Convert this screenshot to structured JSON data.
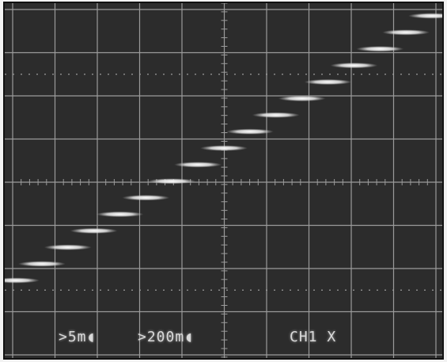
{
  "screen": {
    "background": "#2c2c2c",
    "grid_color": "#9a9a9a",
    "trace_color": "#f4f4f4"
  },
  "readouts": {
    "ch1_volts_div": ">5m◖",
    "ch2_volts_div": ">200m◖",
    "mode": "CH1 X"
  },
  "trace": {
    "type": "staircase",
    "step_count": 17
  }
}
